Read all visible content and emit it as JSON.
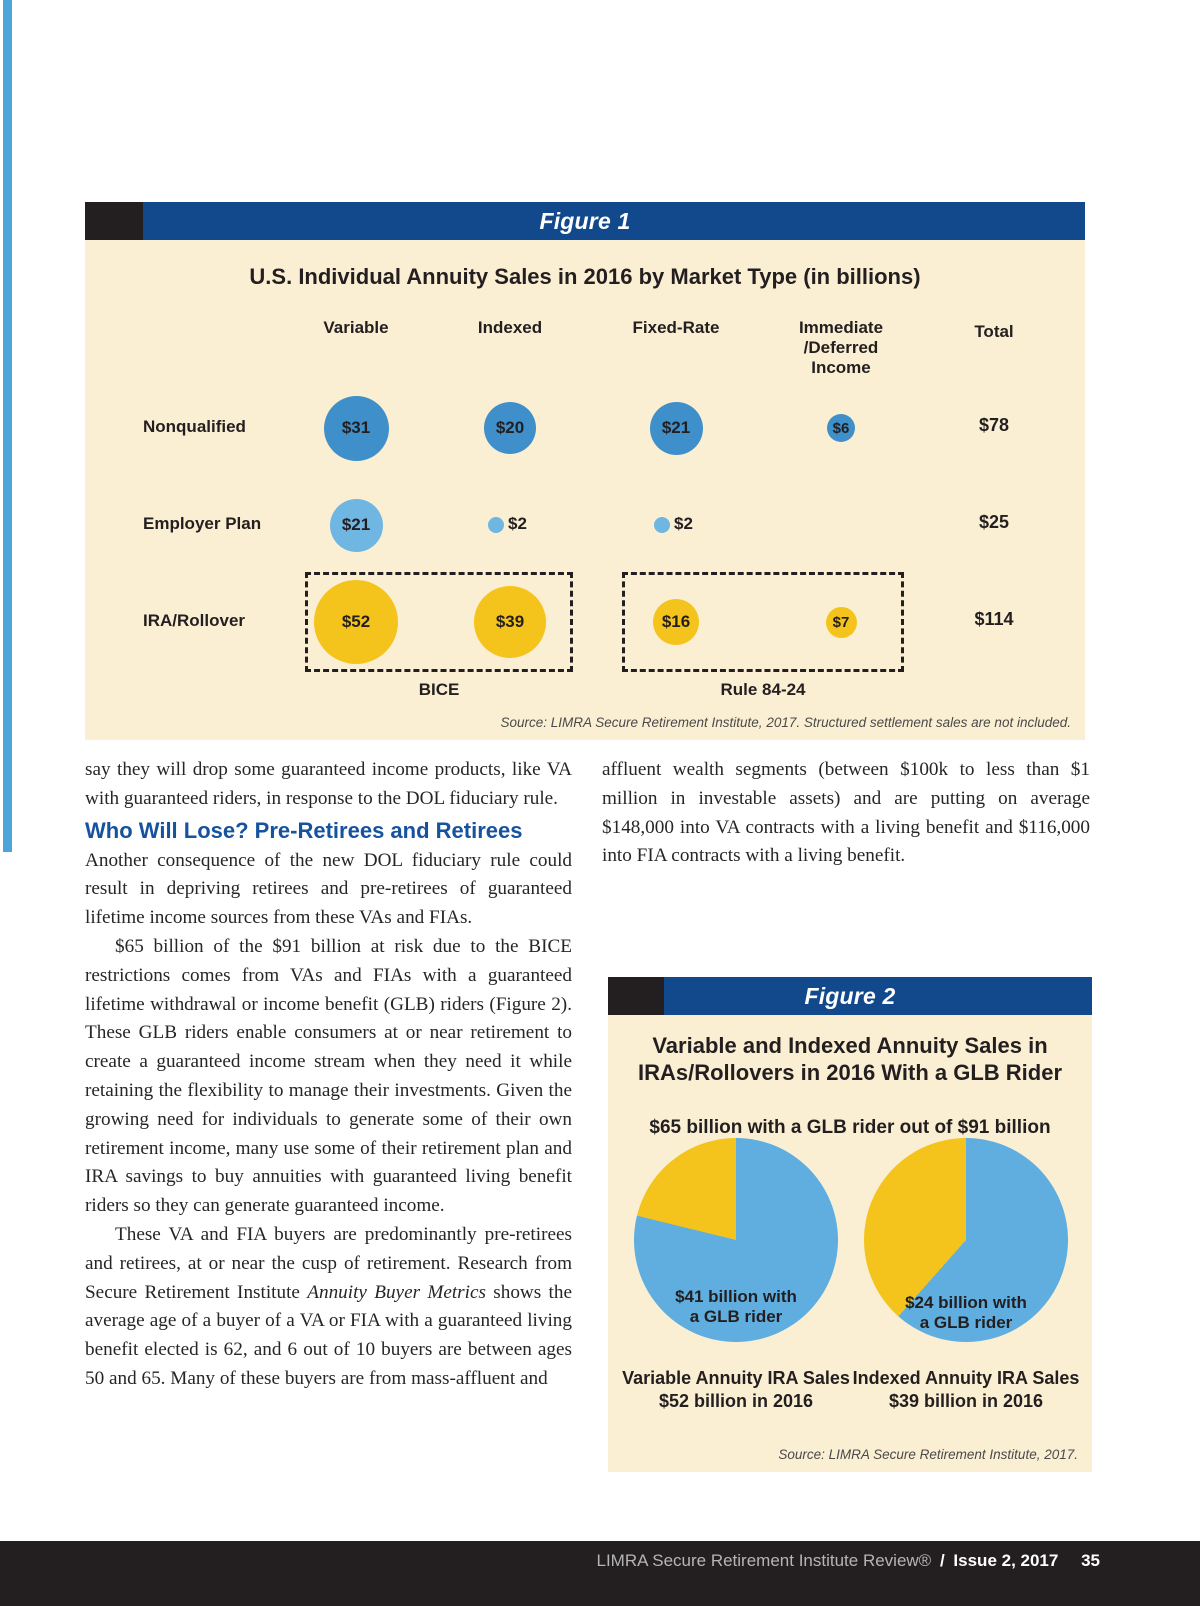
{
  "colors": {
    "figure_header_blue": "#12498D",
    "panel_cream": "#FBEFD3",
    "black_tab": "#231F20",
    "accent_strip_blue": "#4BA5DB",
    "bubble_blue_dark": "#3E8FCA",
    "bubble_blue_light": "#6FB6E3",
    "bubble_yellow": "#F5C41C",
    "pie_blue": "#5FAEDF",
    "pie_yellow": "#F5C41C",
    "heading_blue": "#16529E"
  },
  "figure1": {
    "label": "Figure 1",
    "row_colors": [
      "#3E8FCA",
      "#6FB6E3",
      "#F5C41C"
    ]
  },
  "figure2": {
    "label": "Figure 2"
  },
  "chart_data": [
    {
      "type": "bubble",
      "title": "U.S. Individual Annuity Sales in 2016 by Market Type (in billions)",
      "columns": [
        "Variable",
        "Indexed",
        "Fixed-Rate",
        "Immediate\n/Deferred\nIncome",
        "Total"
      ],
      "rows": [
        "Nonqualified",
        "Employer Plan",
        "IRA/Rollover"
      ],
      "values_billions": [
        [
          31,
          20,
          21,
          6,
          78
        ],
        [
          21,
          2,
          2,
          null,
          25
        ],
        [
          52,
          39,
          16,
          7,
          114
        ]
      ],
      "annotations": [
        {
          "label": "BICE",
          "covers": "IRA/Rollover Variable and Indexed bubbles ($52 and $39)"
        },
        {
          "label": "Rule 84-24",
          "covers": "IRA/Rollover Fixed-Rate and Immediate/Deferred bubbles ($16 and $7)"
        }
      ],
      "source": "Source: LIMRA Secure Retirement Institute, 2017. Structured settlement sales are not included."
    },
    {
      "type": "pie",
      "title": "Variable and Indexed Annuity Sales in\nIRAs/Rollovers in 2016 With a GLB Rider",
      "subtitle": "$65 billion with a GLB rider out of $91 billion",
      "pies": [
        {
          "caption": "Variable Annuity IRA Sales\n$52 billion in 2016",
          "slices": [
            {
              "label": "$41 billion with\na GLB rider",
              "value": 41
            },
            {
              "label": "",
              "value": 11
            }
          ]
        },
        {
          "caption": "Indexed Annuity IRA Sales\n$39 billion in 2016",
          "slices": [
            {
              "label": "$24 billion with\na GLB rider",
              "value": 24
            },
            {
              "label": "",
              "value": 15
            }
          ]
        }
      ],
      "source": "Source: LIMRA Secure Retirement Institute, 2017."
    }
  ],
  "article": {
    "left": {
      "para1": "say they will drop some guaranteed income products, like VA with guaranteed riders, in response to the DOL fiduciary rule.",
      "heading": "Who Will Lose? Pre-Retirees and Retirees",
      "para2": "Another consequence of the new DOL fiduciary rule could result in depriving retirees and pre-retirees of guaranteed lifetime income sources from these VAs and FIAs.",
      "para3": "$65 billion of the $91 billion at risk due to the BICE restrictions comes from VAs and FIAs with a guaranteed lifetime withdrawal or income benefit (GLB) riders (Figure 2). These GLB riders enable consumers at or near retirement to create a guaranteed income stream when they need it while retaining the flexibility to manage their investments. Given the growing need for individuals to generate some of their own retirement income, many use some of their retirement plan and IRA savings to buy annuities with guaranteed living benefit riders so they can generate guaranteed income.",
      "para4_before": "These VA and FIA buyers are predominantly pre-retirees and retirees, at or near the cusp of retirement. Research from Secure Retirement Institute ",
      "para4_italic": "Annuity Buyer Metrics",
      "para4_after": " shows the average age of a buyer of a VA or FIA with a guaranteed living benefit elected is 62, and 6 out of 10 buyers are between ages 50 and 65. Many of these buyers are from mass-affluent and"
    },
    "right": {
      "para1": "affluent wealth segments (between $100k to less than $1 million in investable assets) and are putting on average $148,000 into VA contracts with a living benefit and $116,000 into FIA contracts with a living benefit."
    }
  },
  "footer": {
    "publication": "LIMRA Secure Retirement Institute Review®",
    "separator": "/",
    "issue": "Issue 2, 2017",
    "page_number": "35"
  }
}
